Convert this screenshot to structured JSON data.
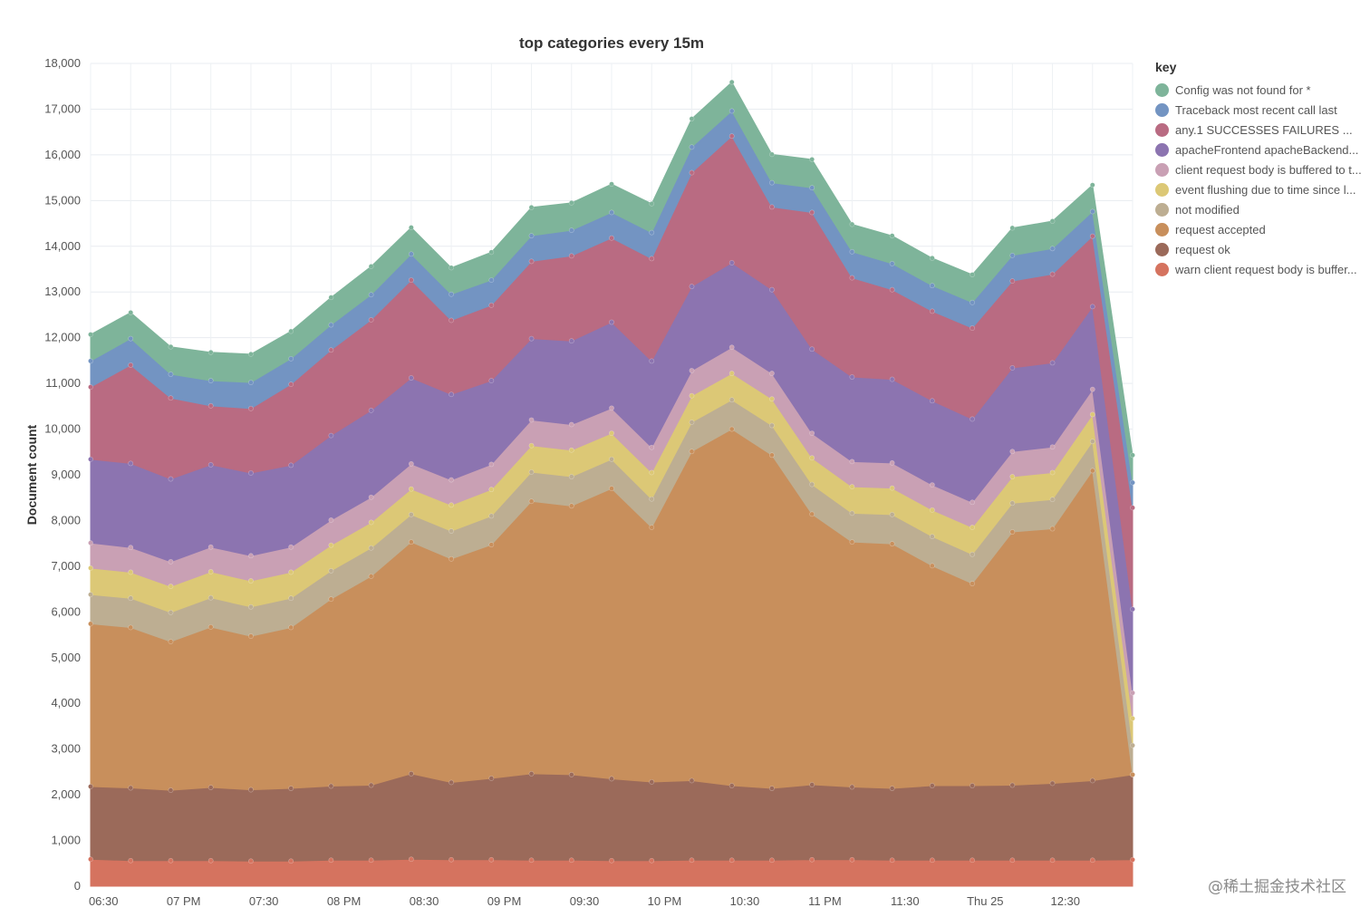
{
  "chart_data": {
    "type": "area",
    "stacked": true,
    "title": "top categories every 15m",
    "xlabel": "",
    "ylabel": "Document count",
    "ylim": [
      0,
      18000
    ],
    "yticks": [
      0,
      1000,
      2000,
      3000,
      4000,
      5000,
      6000,
      7000,
      8000,
      9000,
      10000,
      11000,
      12000,
      13000,
      14000,
      15000,
      16000,
      17000,
      18000
    ],
    "ytick_labels": [
      "0",
      "1,000",
      "2,000",
      "3,000",
      "4,000",
      "5,000",
      "6,000",
      "7,000",
      "8,000",
      "9,000",
      "10,000",
      "11,000",
      "12,000",
      "13,000",
      "14,000",
      "15,000",
      "16,000",
      "17,000",
      "18,000"
    ],
    "x": [
      "18:15",
      "18:30",
      "18:45",
      "19:00",
      "19:15",
      "19:30",
      "19:45",
      "20:00",
      "20:15",
      "20:30",
      "20:45",
      "21:00",
      "21:15",
      "21:30",
      "21:45",
      "22:00",
      "22:15",
      "22:30",
      "22:45",
      "23:00",
      "23:15",
      "23:30",
      "23:45",
      "00:00",
      "00:15",
      "00:30",
      "00:45"
    ],
    "xtick_labels": [
      {
        "x_index": 1,
        "label": "06:30"
      },
      {
        "x_index": 3,
        "label": "07 PM"
      },
      {
        "x_index": 5,
        "label": "07:30"
      },
      {
        "x_index": 7,
        "label": "08 PM"
      },
      {
        "x_index": 9,
        "label": "08:30"
      },
      {
        "x_index": 11,
        "label": "09 PM"
      },
      {
        "x_index": 13,
        "label": "09:30"
      },
      {
        "x_index": 15,
        "label": "10 PM"
      },
      {
        "x_index": 17,
        "label": "10:30"
      },
      {
        "x_index": 19,
        "label": "11 PM"
      },
      {
        "x_index": 21,
        "label": "11:30"
      },
      {
        "x_index": 23,
        "label": "Thu 25"
      },
      {
        "x_index": 25,
        "label": "12:30"
      }
    ],
    "grid": true,
    "legend_title": "key",
    "legend_position": "right",
    "series": [
      {
        "name": "warn client request body is buffer...",
        "color": "#d5735f",
        "values": [
          590,
          560,
          560,
          560,
          550,
          550,
          570,
          570,
          590,
          580,
          580,
          570,
          570,
          560,
          560,
          570,
          570,
          570,
          580,
          580,
          570,
          570,
          570,
          570,
          570,
          570,
          580
        ]
      },
      {
        "name": "request ok",
        "color": "#9b6a5a",
        "values": [
          1590,
          1590,
          1540,
          1600,
          1560,
          1590,
          1620,
          1640,
          1870,
          1690,
          1780,
          1890,
          1870,
          1790,
          1720,
          1740,
          1630,
          1570,
          1640,
          1590,
          1570,
          1630,
          1630,
          1640,
          1680,
          1740,
          1860
        ]
      },
      {
        "name": "request accepted",
        "color": "#c88f5c",
        "values": [
          3560,
          3510,
          3250,
          3510,
          3360,
          3520,
          4090,
          4570,
          5070,
          4890,
          5110,
          5960,
          5880,
          6350,
          5570,
          7200,
          7800,
          7290,
          5920,
          5360,
          5350,
          4810,
          4420,
          5540,
          5570,
          6780,
          0
        ]
      },
      {
        "name": "not modified",
        "color": "#bdae92",
        "values": [
          640,
          640,
          640,
          640,
          640,
          640,
          620,
          620,
          600,
          610,
          630,
          640,
          640,
          640,
          620,
          640,
          640,
          650,
          650,
          630,
          640,
          640,
          640,
          630,
          640,
          640,
          640
        ]
      },
      {
        "name": "event flushing due to time since l...",
        "color": "#dcc876",
        "values": [
          580,
          570,
          570,
          570,
          570,
          570,
          560,
          560,
          560,
          570,
          580,
          580,
          580,
          570,
          580,
          580,
          580,
          580,
          580,
          580,
          580,
          580,
          590,
          580,
          590,
          590,
          590
        ]
      },
      {
        "name": "client request body is buffered to t...",
        "color": "#c9a0b4",
        "values": [
          550,
          540,
          540,
          540,
          550,
          550,
          550,
          550,
          550,
          550,
          550,
          560,
          560,
          550,
          550,
          550,
          570,
          560,
          540,
          550,
          550,
          550,
          550,
          550,
          560,
          550,
          560
        ]
      },
      {
        "name": "apacheFrontend apacheBackend...",
        "color": "#8c74b0",
        "values": [
          1830,
          1840,
          1810,
          1800,
          1810,
          1790,
          1850,
          1900,
          1880,
          1870,
          1830,
          1780,
          1830,
          1880,
          1890,
          1840,
          1850,
          1830,
          1840,
          1850,
          1830,
          1840,
          1820,
          1830,
          1840,
          1810,
          1830
        ]
      },
      {
        "name": "any.1 SUCCESSES FAILURES ...",
        "color": "#b96b82",
        "values": [
          1580,
          2150,
          1770,
          1290,
          1410,
          1770,
          1870,
          1980,
          2140,
          1620,
          1650,
          1690,
          1860,
          1840,
          2240,
          2490,
          2770,
          1810,
          2990,
          2170,
          1960,
          1960,
          1990,
          1900,
          1940,
          1540,
          2220
        ]
      },
      {
        "name": "Traceback most recent call last",
        "color": "#7394c2",
        "values": [
          570,
          580,
          520,
          550,
          570,
          560,
          550,
          550,
          570,
          570,
          550,
          560,
          560,
          560,
          570,
          560,
          550,
          530,
          540,
          570,
          570,
          560,
          560,
          560,
          560,
          540,
          550
        ]
      },
      {
        "name": "Config was not found for *",
        "color": "#7eb49a",
        "values": [
          580,
          570,
          600,
          620,
          620,
          600,
          600,
          620,
          580,
          580,
          610,
          620,
          600,
          620,
          630,
          620,
          630,
          620,
          620,
          600,
          610,
          600,
          610,
          600,
          600,
          580,
          600
        ]
      }
    ]
  },
  "watermark": "@稀土掘金技术社区"
}
